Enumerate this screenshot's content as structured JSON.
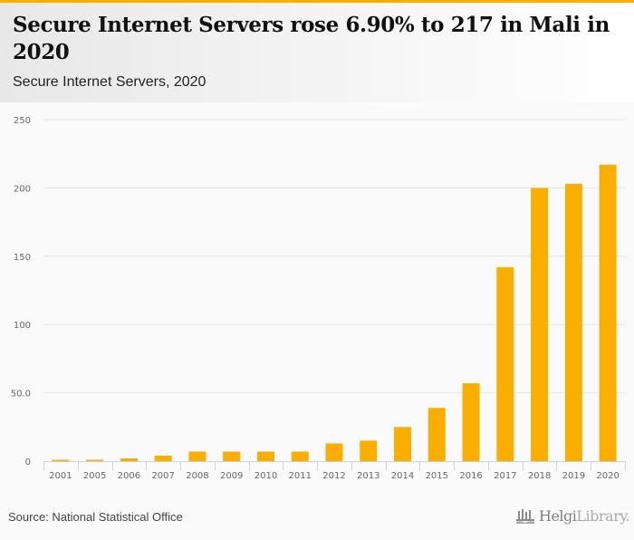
{
  "header": {
    "title": "Secure Internet Servers rose 6.90% to 217 in Mali in 2020",
    "subtitle": "Secure Internet Servers, 2020"
  },
  "footer": {
    "source": "Source: National Statistical Office",
    "logo_part1": "Helgi",
    "logo_part2": "Library."
  },
  "colors": {
    "accent": "#f9ae00",
    "bar": "#f9ae00",
    "grid": "#e4e4e4",
    "axis": "#c8d3e6"
  },
  "chart_data": {
    "type": "bar",
    "title": "Secure Internet Servers rose 6.90% to 217 in Mali in 2020",
    "subtitle": "Secure Internet Servers, 2020",
    "xlabel": "",
    "ylabel": "",
    "categories": [
      "2001",
      "2005",
      "2006",
      "2007",
      "2008",
      "2009",
      "2010",
      "2011",
      "2012",
      "2013",
      "2014",
      "2015",
      "2016",
      "2017",
      "2018",
      "2019",
      "2020"
    ],
    "values": [
      1,
      1,
      2,
      4,
      7,
      7,
      7,
      7,
      13,
      15,
      25,
      39,
      57,
      142,
      200,
      203,
      217
    ],
    "ylim": [
      0,
      250
    ],
    "yticks": [
      0,
      50,
      100,
      150,
      200,
      250
    ],
    "ytick_labels": [
      "0",
      "50.0",
      "100",
      "150",
      "200",
      "250"
    ],
    "grid": true,
    "legend": "none"
  }
}
